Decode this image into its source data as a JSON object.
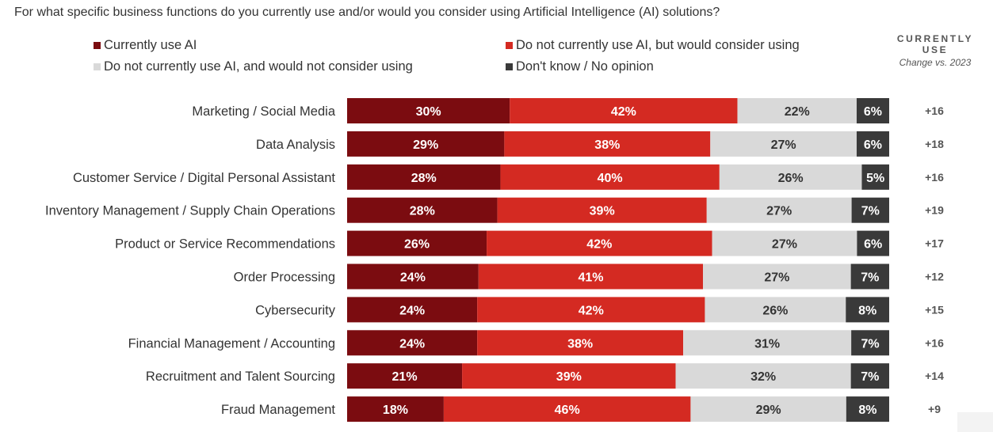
{
  "question": "For what specific business functions do you currently use and/or would you consider using Artificial Intelligence (AI) solutions?",
  "legend": [
    {
      "label": "Currently use AI",
      "color": "#7b0c10"
    },
    {
      "label": "Do not currently use AI, but would consider using",
      "color": "#d42a22"
    },
    {
      "label": "Do not currently use AI, and would not consider using",
      "color": "#d9d9d9"
    },
    {
      "label": "Don't know / No opinion",
      "color": "#3a3a3a"
    }
  ],
  "change_column": {
    "title": "CURRENTLY USE",
    "subtitle": "Change vs. 2023"
  },
  "chart_data": {
    "type": "bar",
    "orientation": "horizontal",
    "stacked": true,
    "categories": [
      "Marketing / Social Media",
      "Data Analysis",
      "Customer Service / Digital Personal Assistant",
      "Inventory Management / Supply Chain Operations",
      "Product or Service Recommendations",
      "Order Processing",
      "Cybersecurity",
      "Financial Management / Accounting",
      "Recruitment and Talent Sourcing",
      "Fraud Management"
    ],
    "series": [
      {
        "name": "Currently use AI",
        "color": "#7b0c10",
        "values": [
          30,
          29,
          28,
          28,
          26,
          24,
          24,
          24,
          21,
          18
        ]
      },
      {
        "name": "Do not currently use AI, but would consider using",
        "color": "#d42a22",
        "values": [
          42,
          38,
          40,
          39,
          42,
          41,
          42,
          38,
          39,
          46
        ]
      },
      {
        "name": "Do not currently use AI, and would not consider using",
        "color": "#d9d9d9",
        "values": [
          22,
          27,
          26,
          27,
          27,
          27,
          26,
          31,
          32,
          29
        ]
      },
      {
        "name": "Don't know / No opinion",
        "color": "#3a3a3a",
        "values": [
          6,
          6,
          5,
          7,
          6,
          7,
          8,
          7,
          7,
          8
        ]
      }
    ],
    "value_suffix": "%",
    "change_vs_2023": [
      "+16",
      "+18",
      "+16",
      "+19",
      "+17",
      "+12",
      "+15",
      "+16",
      "+14",
      "+9"
    ]
  }
}
